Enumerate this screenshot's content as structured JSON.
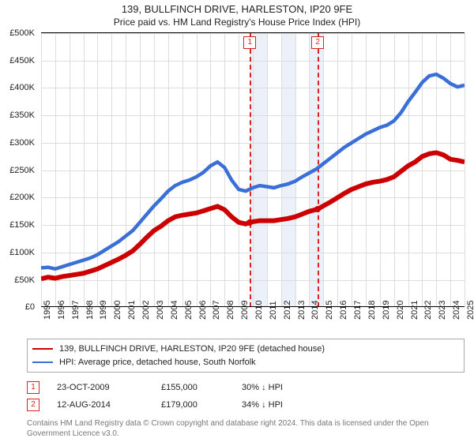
{
  "title": "139, BULLFINCH DRIVE, HARLESTON, IP20 9FE",
  "subtitle": "Price paid vs. HM Land Registry's House Price Index (HPI)",
  "chart": {
    "type": "line",
    "background_color": "#ffffff",
    "grid_color": "#dddddd",
    "axis_color": "#000000",
    "band_color": "#ecf0f8",
    "font_size": 11,
    "x": {
      "min": 1995,
      "max": 2025,
      "ticks": [
        1995,
        1996,
        1997,
        1998,
        1999,
        2000,
        2001,
        2002,
        2003,
        2004,
        2005,
        2006,
        2007,
        2008,
        2009,
        2010,
        2011,
        2012,
        2013,
        2014,
        2015,
        2016,
        2017,
        2018,
        2019,
        2020,
        2021,
        2022,
        2023,
        2024,
        2025
      ]
    },
    "y": {
      "min": 0,
      "max": 500000,
      "step": 50000,
      "labels": [
        "£0",
        "£50K",
        "£100K",
        "£150K",
        "£200K",
        "£250K",
        "£300K",
        "£350K",
        "£400K",
        "£450K",
        "£500K"
      ]
    },
    "bands": [
      {
        "from": 2009.8,
        "to": 2011
      },
      {
        "from": 2012,
        "to": 2013
      },
      {
        "from": 2014,
        "to": 2015
      }
    ],
    "marker_lines": [
      {
        "x": 2009.8,
        "label": "1"
      },
      {
        "x": 2014.6,
        "label": "2"
      }
    ],
    "series": [
      {
        "name": "property",
        "label": "139, BULLFINCH DRIVE, HARLESTON, IP20 9FE (detached house)",
        "color": "#cc0000",
        "line_width": 2,
        "data": [
          [
            1995,
            52000
          ],
          [
            1995.5,
            55000
          ],
          [
            1996,
            53000
          ],
          [
            1996.5,
            56000
          ],
          [
            1997,
            58000
          ],
          [
            1997.5,
            60000
          ],
          [
            1998,
            62000
          ],
          [
            1998.5,
            66000
          ],
          [
            1999,
            70000
          ],
          [
            1999.5,
            76000
          ],
          [
            2000,
            82000
          ],
          [
            2000.5,
            88000
          ],
          [
            2001,
            95000
          ],
          [
            2001.5,
            103000
          ],
          [
            2002,
            115000
          ],
          [
            2002.5,
            128000
          ],
          [
            2003,
            140000
          ],
          [
            2003.5,
            148000
          ],
          [
            2004,
            158000
          ],
          [
            2004.5,
            165000
          ],
          [
            2005,
            168000
          ],
          [
            2005.5,
            170000
          ],
          [
            2006,
            172000
          ],
          [
            2006.5,
            176000
          ],
          [
            2007,
            180000
          ],
          [
            2007.5,
            184000
          ],
          [
            2008,
            178000
          ],
          [
            2008.5,
            165000
          ],
          [
            2009,
            155000
          ],
          [
            2009.5,
            152000
          ],
          [
            2009.8,
            155000
          ],
          [
            2010,
            156000
          ],
          [
            2010.5,
            158000
          ],
          [
            2011,
            158000
          ],
          [
            2011.5,
            158000
          ],
          [
            2012,
            160000
          ],
          [
            2012.5,
            162000
          ],
          [
            2013,
            165000
          ],
          [
            2013.5,
            170000
          ],
          [
            2014,
            175000
          ],
          [
            2014.6,
            179000
          ],
          [
            2015,
            185000
          ],
          [
            2015.5,
            192000
          ],
          [
            2016,
            200000
          ],
          [
            2016.5,
            208000
          ],
          [
            2017,
            215000
          ],
          [
            2017.5,
            220000
          ],
          [
            2018,
            225000
          ],
          [
            2018.5,
            228000
          ],
          [
            2019,
            230000
          ],
          [
            2019.5,
            233000
          ],
          [
            2020,
            238000
          ],
          [
            2020.5,
            248000
          ],
          [
            2021,
            258000
          ],
          [
            2021.5,
            265000
          ],
          [
            2022,
            275000
          ],
          [
            2022.5,
            280000
          ],
          [
            2023,
            282000
          ],
          [
            2023.5,
            278000
          ],
          [
            2024,
            270000
          ],
          [
            2024.5,
            268000
          ],
          [
            2025,
            265000
          ]
        ]
      },
      {
        "name": "hpi",
        "label": "HPI: Average price, detached house, South Norfolk",
        "color": "#3a6fd8",
        "line_width": 1.5,
        "data": [
          [
            1995,
            72000
          ],
          [
            1995.5,
            73000
          ],
          [
            1996,
            70000
          ],
          [
            1996.5,
            74000
          ],
          [
            1997,
            78000
          ],
          [
            1997.5,
            82000
          ],
          [
            1998,
            86000
          ],
          [
            1998.5,
            90000
          ],
          [
            1999,
            96000
          ],
          [
            1999.5,
            104000
          ],
          [
            2000,
            112000
          ],
          [
            2000.5,
            120000
          ],
          [
            2001,
            130000
          ],
          [
            2001.5,
            140000
          ],
          [
            2002,
            155000
          ],
          [
            2002.5,
            170000
          ],
          [
            2003,
            185000
          ],
          [
            2003.5,
            198000
          ],
          [
            2004,
            212000
          ],
          [
            2004.5,
            222000
          ],
          [
            2005,
            228000
          ],
          [
            2005.5,
            232000
          ],
          [
            2006,
            238000
          ],
          [
            2006.5,
            246000
          ],
          [
            2007,
            258000
          ],
          [
            2007.5,
            265000
          ],
          [
            2008,
            255000
          ],
          [
            2008.5,
            232000
          ],
          [
            2009,
            215000
          ],
          [
            2009.5,
            212000
          ],
          [
            2010,
            218000
          ],
          [
            2010.5,
            222000
          ],
          [
            2011,
            220000
          ],
          [
            2011.5,
            218000
          ],
          [
            2012,
            222000
          ],
          [
            2012.5,
            225000
          ],
          [
            2013,
            230000
          ],
          [
            2013.5,
            238000
          ],
          [
            2014,
            245000
          ],
          [
            2014.5,
            252000
          ],
          [
            2015,
            262000
          ],
          [
            2015.5,
            272000
          ],
          [
            2016,
            282000
          ],
          [
            2016.5,
            292000
          ],
          [
            2017,
            300000
          ],
          [
            2017.5,
            308000
          ],
          [
            2018,
            316000
          ],
          [
            2018.5,
            322000
          ],
          [
            2019,
            328000
          ],
          [
            2019.5,
            332000
          ],
          [
            2020,
            340000
          ],
          [
            2020.5,
            355000
          ],
          [
            2021,
            375000
          ],
          [
            2021.5,
            392000
          ],
          [
            2022,
            410000
          ],
          [
            2022.5,
            422000
          ],
          [
            2023,
            425000
          ],
          [
            2023.5,
            418000
          ],
          [
            2024,
            408000
          ],
          [
            2024.5,
            402000
          ],
          [
            2025,
            405000
          ]
        ]
      }
    ],
    "sale_points": [
      {
        "x": 2009.8,
        "y": 155000,
        "color": "#cc0000"
      },
      {
        "x": 2014.6,
        "y": 179000,
        "color": "#cc0000"
      }
    ]
  },
  "legend": {
    "items": [
      {
        "color": "#cc0000",
        "label": "139, BULLFINCH DRIVE, HARLESTON, IP20 9FE (detached house)"
      },
      {
        "color": "#3a6fd8",
        "label": "HPI: Average price, detached house, South Norfolk"
      }
    ]
  },
  "sales": [
    {
      "marker": "1",
      "date": "23-OCT-2009",
      "price": "£155,000",
      "cmp": "30% ↓ HPI"
    },
    {
      "marker": "2",
      "date": "12-AUG-2014",
      "price": "£179,000",
      "cmp": "34% ↓ HPI"
    }
  ],
  "footnote": "Contains HM Land Registry data © Crown copyright and database right 2024. This data is licensed under the Open Government Licence v3.0."
}
